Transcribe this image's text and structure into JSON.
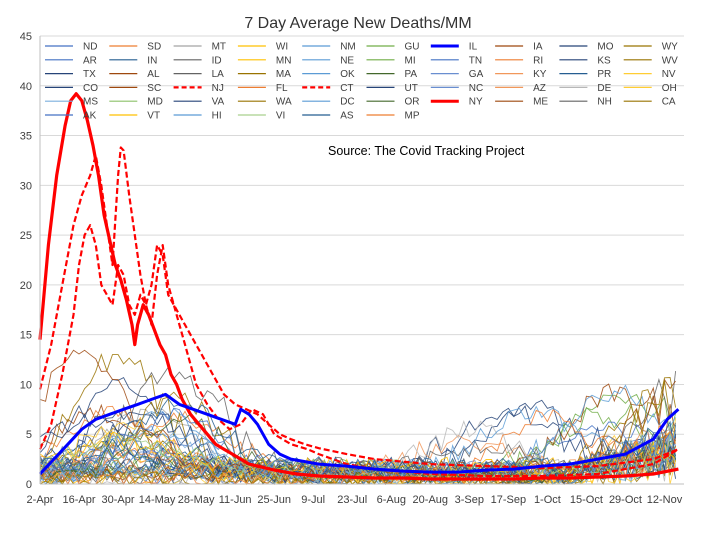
{
  "chart_data": {
    "type": "line",
    "title": "7 Day Average New Deaths/MM",
    "annotation": "Source: The Covid Tracking Project",
    "xlabel": "",
    "ylabel": "",
    "ylim": [
      0,
      45
    ],
    "yticks": [
      0,
      5,
      10,
      15,
      20,
      25,
      30,
      35,
      40,
      45
    ],
    "x_tick_labels": [
      "2-Apr",
      "16-Apr",
      "30-Apr",
      "14-May",
      "28-May",
      "11-Jun",
      "25-Jun",
      "9-Jul",
      "23-Jul",
      "6-Aug",
      "20-Aug",
      "3-Sep",
      "17-Sep",
      "1-Oct",
      "15-Oct",
      "29-Oct",
      "12-Nov"
    ],
    "x_tick_day_index": [
      0,
      14,
      28,
      42,
      56,
      70,
      84,
      98,
      112,
      126,
      140,
      154,
      168,
      182,
      196,
      210,
      224
    ],
    "x_range_days": [
      0,
      231
    ],
    "grid": true,
    "legend_position": "top",
    "legend_columns": 10,
    "legend": [
      "ND",
      "SD",
      "MT",
      "WI",
      "NM",
      "GU",
      "IL",
      "IA",
      "MO",
      "WY",
      "AR",
      "IN",
      "ID",
      "MN",
      "NE",
      "MI",
      "TN",
      "RI",
      "KS",
      "WV",
      "TX",
      "AL",
      "LA",
      "MA",
      "OK",
      "PA",
      "GA",
      "KY",
      "PR",
      "NV",
      "CO",
      "SC",
      "NJ",
      "FL",
      "CT",
      "UT",
      "NC",
      "AZ",
      "DE",
      "OH",
      "MS",
      "MD",
      "VA",
      "WA",
      "DC",
      "OR",
      "NY",
      "ME",
      "NH",
      "CA",
      "AK",
      "VT",
      "HI",
      "VI",
      "AS",
      "MP"
    ],
    "legend_colors": [
      "#4472c4",
      "#ed7d31",
      "#a5a5a5",
      "#ffc000",
      "#5b9bd5",
      "#70ad47",
      "#0000ff",
      "#9e480e",
      "#264478",
      "#997300",
      "#4472c4",
      "#255e91",
      "#636363",
      "#ffc000",
      "#5b9bd5",
      "#70ad47",
      "#4472c4",
      "#ed7d31",
      "#264478",
      "#997300",
      "#264478",
      "#9e480e",
      "#636363",
      "#997300",
      "#5b9bd5",
      "#43682b",
      "#698ed0",
      "#f1975a",
      "#255e91",
      "#ffcd33",
      "#264478",
      "#9e480e",
      "#ff0000",
      "#ed7d31",
      "#ff0000",
      "#264478",
      "#698ed0",
      "#f1975a",
      "#b7b7b7",
      "#ffcd33",
      "#7cafdd",
      "#8cc168",
      "#264478",
      "#997300",
      "#5b9bd5",
      "#43682b",
      "#ff0000",
      "#9e480e",
      "#636363",
      "#997300",
      "#4472c4",
      "#ffc000",
      "#5b9bd5",
      "#a9d18e",
      "#255e91",
      "#ed7d31"
    ],
    "highlighted_series": [
      {
        "name": "NY",
        "color": "#ff0000",
        "style": "solid",
        "x": [
          0,
          3,
          6,
          9,
          11,
          13,
          15,
          17,
          19,
          21,
          23,
          25,
          27,
          29,
          31,
          33,
          34,
          35,
          37,
          39,
          41,
          43,
          45,
          47,
          49,
          51,
          54,
          57,
          60,
          63,
          66,
          69,
          72,
          75,
          78,
          81,
          84,
          88,
          92,
          96,
          100,
          110,
          120,
          130,
          140,
          150,
          160,
          170,
          180,
          190,
          200,
          210,
          220,
          229
        ],
        "y": [
          14.5,
          24,
          31,
          36,
          38.5,
          39.2,
          38.5,
          36.5,
          34,
          31,
          27,
          24.5,
          22,
          20.5,
          18.5,
          16,
          14,
          16,
          18,
          17,
          15.5,
          14,
          13,
          11,
          10,
          8.5,
          7,
          6,
          5,
          4,
          3.5,
          3,
          2.5,
          2,
          1.8,
          1.6,
          1.4,
          1.2,
          1,
          0.9,
          0.8,
          0.7,
          0.6,
          0.6,
          0.5,
          0.5,
          0.5,
          0.5,
          0.6,
          0.6,
          0.7,
          0.8,
          1.0,
          1.5
        ]
      },
      {
        "name": "NJ",
        "color": "#ff0000",
        "style": "dashed",
        "x": [
          0,
          4,
          8,
          12,
          15,
          18,
          20,
          22,
          24,
          26,
          28,
          29,
          30,
          32,
          34,
          36,
          38,
          40,
          42,
          44,
          46,
          48,
          50,
          54,
          58,
          62,
          66,
          70,
          74,
          78,
          82,
          86,
          90,
          95,
          100,
          110,
          120,
          140,
          160,
          180,
          200,
          220,
          229
        ],
        "y": [
          9.5,
          14,
          20,
          26,
          29,
          31,
          33,
          30,
          26,
          22,
          31,
          33.8,
          33.5,
          29,
          25,
          21,
          18,
          20,
          24,
          23,
          19,
          18,
          17,
          15,
          13,
          11,
          9,
          8,
          7.5,
          7,
          6,
          5,
          4.5,
          4,
          3.6,
          3,
          2.5,
          2,
          1.8,
          1.6,
          1.8,
          2.5,
          3.5
        ]
      },
      {
        "name": "CT",
        "color": "#ff0000",
        "style": "dashed",
        "x": [
          0,
          4,
          8,
          12,
          14,
          16,
          18,
          20,
          22,
          24,
          26,
          28,
          30,
          32,
          34,
          36,
          38,
          40,
          42,
          44,
          46,
          48,
          52,
          56,
          60,
          64,
          68,
          72,
          76,
          80,
          84,
          90,
          96,
          100,
          110,
          120,
          140,
          160,
          180,
          200,
          220,
          229
        ],
        "y": [
          3.5,
          6,
          11,
          17,
          22,
          25,
          26,
          24,
          20,
          19,
          18,
          22,
          21,
          18,
          17,
          19,
          18,
          16,
          21,
          24,
          20,
          18,
          14,
          10,
          8,
          6.5,
          5.5,
          6,
          7.5,
          7,
          5,
          4,
          3.5,
          3,
          2,
          1.5,
          1,
          0.8,
          0.8,
          1,
          2,
          3.5
        ]
      },
      {
        "name": "IL",
        "color": "#0000ff",
        "style": "thick",
        "x": [
          0,
          5,
          10,
          15,
          20,
          25,
          30,
          35,
          40,
          45,
          50,
          55,
          60,
          65,
          70,
          72,
          75,
          78,
          82,
          86,
          90,
          100,
          110,
          120,
          130,
          140,
          150,
          160,
          170,
          180,
          190,
          200,
          210,
          220,
          225,
          229
        ],
        "y": [
          1,
          2.5,
          4,
          5.5,
          6.5,
          7,
          7.5,
          8,
          8.5,
          9,
          8,
          7.5,
          7,
          6.5,
          6,
          7.5,
          7,
          6,
          4,
          3,
          2.5,
          2,
          1.8,
          1.5,
          1.3,
          1.2,
          1.2,
          1.4,
          1.5,
          1.8,
          2,
          2.5,
          3,
          4.5,
          6.5,
          7.5
        ]
      }
    ]
  }
}
